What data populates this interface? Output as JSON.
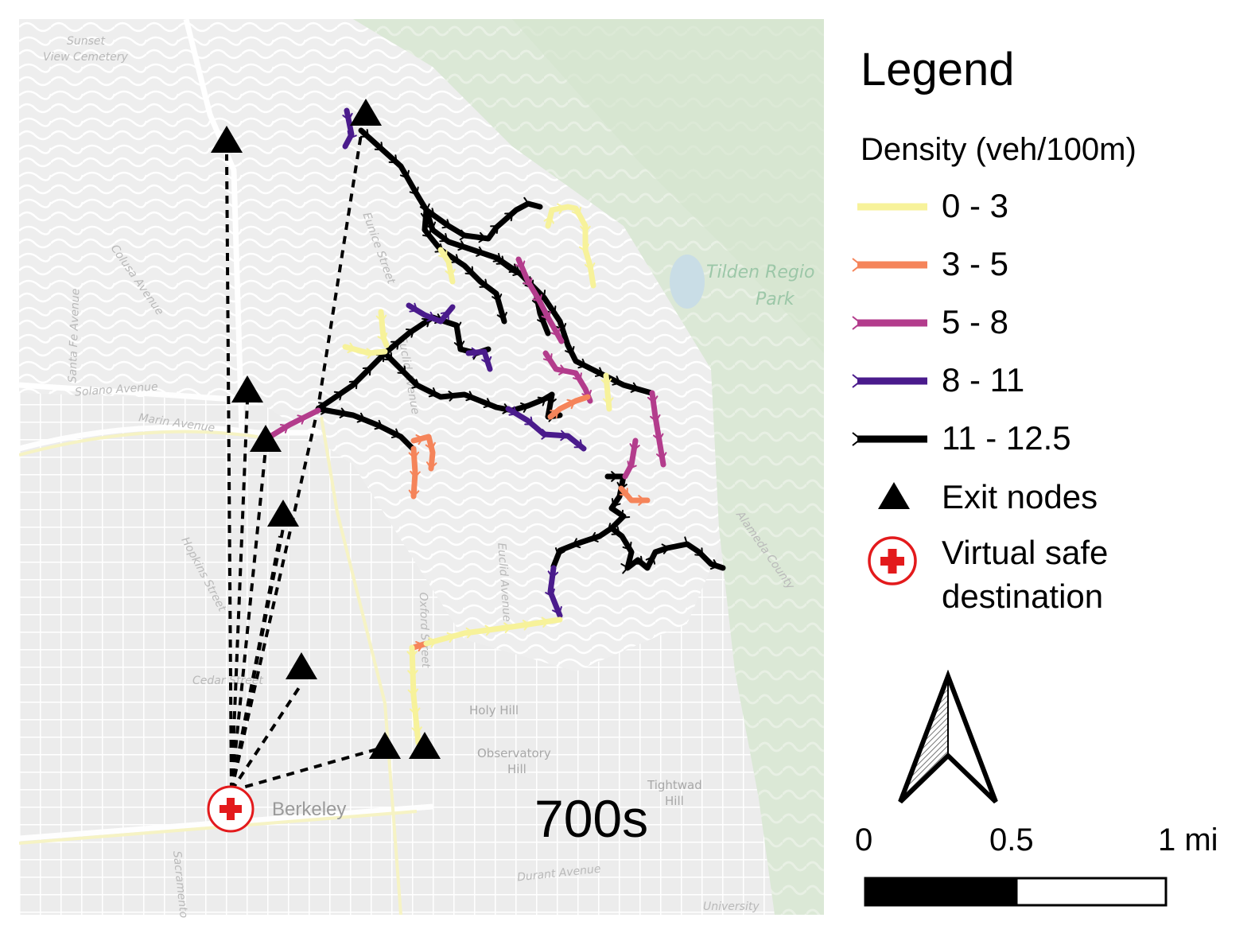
{
  "map": {
    "timestamp": "700s",
    "city_label": "Berkeley",
    "park_labels": [
      "Tilden Regio",
      "Park"
    ],
    "street_labels": [
      "Sunset",
      "View Cemetery",
      "Eunice Street",
      "Euclid Avenue",
      "Colusa Avenue",
      "Santa Fe Avenue",
      "Solano Avenue",
      "Marin Avenue",
      "Hopkins Street",
      "Oxford Street",
      "Euclid Avenue",
      "Cedar Street",
      "Holy Hill",
      "Observatory",
      "Hill",
      "Tightwad",
      "Hill",
      "Durant Avenue",
      "Sacramento",
      "Alameda County",
      "University"
    ],
    "colors": {
      "density_0_3": "#f7f29a",
      "density_3_5": "#f5845a",
      "density_5_8": "#b33c8c",
      "density_8_11": "#4a1b8c",
      "density_11_12_5": "#000000",
      "virtual_safe_destination": "#e31a1c",
      "basemap_park": "#dfecd9",
      "basemap_road": "#ffffff"
    }
  },
  "legend": {
    "title": "Legend",
    "subtitle": "Density (veh/100m)",
    "items": [
      {
        "label": "0 - 3",
        "color": "#f7f29a",
        "symbol": "line"
      },
      {
        "label": "3 - 5",
        "color": "#f5845a",
        "symbol": "line"
      },
      {
        "label": "5 - 8",
        "color": "#b33c8c",
        "symbol": "line"
      },
      {
        "label": "8 - 11",
        "color": "#4a1b8c",
        "symbol": "line"
      },
      {
        "label": "11 - 12.5",
        "color": "#000000",
        "symbol": "line"
      }
    ],
    "exit_nodes_label": "Exit nodes",
    "safe_destination_label": "Virtual safe destination",
    "north_arrow_icon": "north-arrow-icon"
  },
  "scale_bar": {
    "ticks": [
      "0",
      "0.5",
      "1 mi"
    ]
  }
}
